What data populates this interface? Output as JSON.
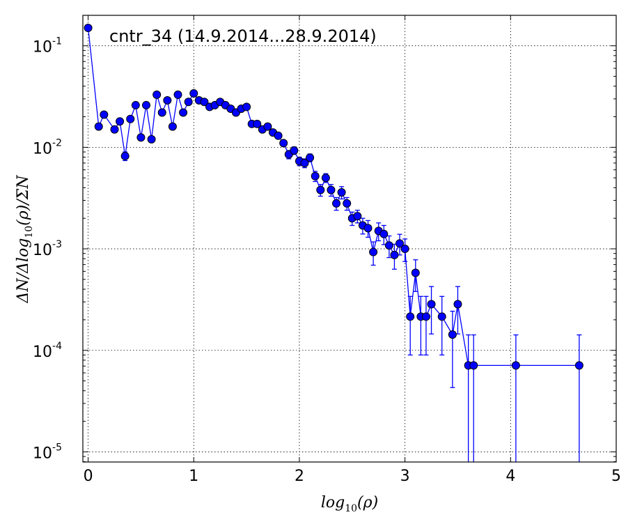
{
  "chart_data": {
    "type": "scatter",
    "title": "cntr_34 (14.9.2014...28.9.2014)",
    "xlabel": {
      "main": "log",
      "sub": "10",
      "tail": "(ρ)"
    },
    "ylabel": {
      "pre": "ΔN/Δlog",
      "sub": "10",
      "post": "(ρ)/ΣN"
    },
    "x_ticks": [
      "0",
      "1",
      "2",
      "3",
      "4",
      "5"
    ],
    "y_ticks": [
      {
        "base": "10",
        "exp": "-1"
      },
      {
        "base": "10",
        "exp": "-2"
      },
      {
        "base": "10",
        "exp": "-3"
      },
      {
        "base": "10",
        "exp": "-4"
      },
      {
        "base": "10",
        "exp": "-5"
      }
    ],
    "xlim": [
      -0.05,
      5.0
    ],
    "ylim_log10": [
      -5.1,
      -0.7
    ],
    "y_scale": "log",
    "grid": true,
    "series_color": "#0000ff",
    "series": [
      {
        "x": [
          0.0,
          0.1,
          0.15,
          0.25,
          0.3,
          0.35,
          0.4,
          0.45,
          0.5,
          0.55,
          0.6,
          0.65,
          0.7,
          0.75,
          0.8,
          0.85,
          0.9,
          0.95,
          1.0,
          1.05,
          1.1,
          1.15,
          1.2,
          1.25,
          1.3,
          1.35,
          1.4,
          1.45,
          1.5,
          1.55,
          1.6,
          1.65,
          1.7,
          1.75,
          1.8,
          1.85,
          1.9,
          1.95,
          2.0,
          2.05,
          2.1,
          2.15,
          2.2,
          2.25,
          2.3,
          2.35,
          2.4,
          2.45,
          2.5,
          2.55,
          2.6,
          2.65,
          2.7,
          2.75,
          2.8,
          2.85,
          2.9,
          2.95,
          3.0,
          3.05,
          3.1,
          3.15,
          3.2,
          3.25,
          3.35,
          3.45,
          3.5,
          3.6,
          3.65,
          4.05,
          4.65
        ],
        "y": [
          0.15,
          0.016,
          0.021,
          0.015,
          0.018,
          0.0082,
          0.019,
          0.026,
          0.0125,
          0.026,
          0.012,
          0.033,
          0.022,
          0.029,
          0.016,
          0.033,
          0.022,
          0.028,
          0.034,
          0.029,
          0.028,
          0.025,
          0.026,
          0.028,
          0.026,
          0.024,
          0.022,
          0.024,
          0.025,
          0.017,
          0.017,
          0.015,
          0.016,
          0.014,
          0.013,
          0.011,
          0.0085,
          0.0093,
          0.0073,
          0.007,
          0.0079,
          0.0052,
          0.0038,
          0.005,
          0.0038,
          0.0028,
          0.0036,
          0.0028,
          0.002,
          0.0021,
          0.0017,
          0.0016,
          0.00093,
          0.0015,
          0.0014,
          0.00108,
          0.00087,
          0.00113,
          0.001,
          0.000215,
          0.00058,
          0.000215,
          0.000215,
          0.000285,
          0.000215,
          0.000143,
          0.000285,
          7.1e-05,
          7.1e-05,
          7.1e-05,
          7.1e-05
        ],
        "err_lo": [
          0.0,
          0.0,
          0.0,
          0.0,
          0.0,
          0.0008,
          0.0,
          0.0,
          0.0,
          0.0,
          0.0,
          0.0,
          0.0,
          0.0,
          0.0,
          0.0,
          0.0,
          0.0,
          0.0,
          0.0,
          0.0,
          0.0,
          0.0,
          0.0,
          0.0,
          0.0,
          0.0,
          0.0,
          0.0,
          0.0,
          0.0,
          0.0,
          0.0,
          0.0,
          0.0,
          0.0,
          0.0008,
          0.0008,
          0.0007,
          0.0007,
          0.0007,
          0.0006,
          0.0005,
          0.0005,
          0.0005,
          0.0004,
          0.0005,
          0.0004,
          0.0003,
          0.0003,
          0.0003,
          0.0003,
          0.00024,
          0.0003,
          0.0003,
          0.00026,
          0.00024,
          0.00026,
          0.00025,
          0.000125,
          0.0002,
          0.000125,
          0.000125,
          0.00014,
          0.000125,
          0.0001,
          0.00014,
          7.05e-05,
          7.05e-05,
          7.05e-05,
          7.05e-05
        ],
        "err_hi": [
          0.0,
          0.0,
          0.0,
          0.0,
          0.0,
          0.0008,
          0.0,
          0.0,
          0.0,
          0.0,
          0.0,
          0.0,
          0.0,
          0.0,
          0.0,
          0.0,
          0.0,
          0.0,
          0.0,
          0.0,
          0.0,
          0.0,
          0.0,
          0.0,
          0.0,
          0.0,
          0.0,
          0.0,
          0.0,
          0.0,
          0.0,
          0.0,
          0.0,
          0.0,
          0.0,
          0.0,
          0.0008,
          0.0008,
          0.0007,
          0.0007,
          0.0007,
          0.0006,
          0.0005,
          0.0005,
          0.0005,
          0.0004,
          0.0005,
          0.0004,
          0.0003,
          0.0003,
          0.0003,
          0.0003,
          0.00024,
          0.0003,
          0.0003,
          0.00026,
          0.00024,
          0.00026,
          0.00025,
          0.000125,
          0.0002,
          0.000125,
          0.000125,
          0.00014,
          0.000125,
          0.0001,
          0.00014,
          7.1e-05,
          7.1e-05,
          7.1e-05,
          7.1e-05
        ]
      }
    ]
  }
}
